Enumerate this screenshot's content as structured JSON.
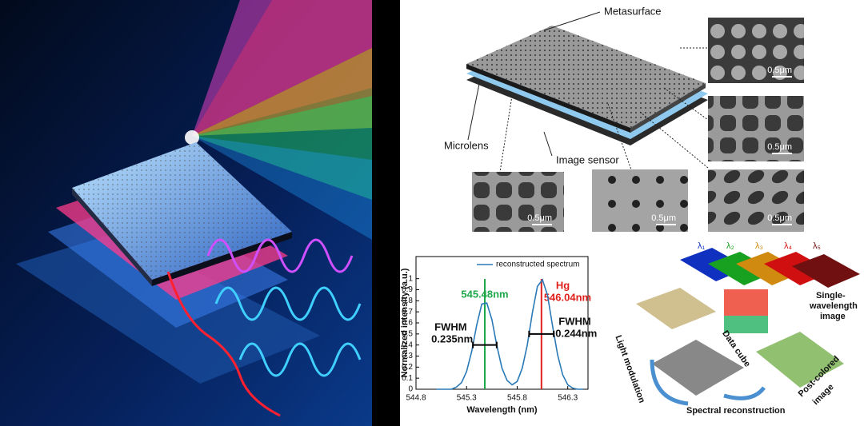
{
  "diagram": {
    "metasurface": "Metasurface",
    "microlens": "Microlens",
    "image_sensor": "Image sensor",
    "scale_bars": [
      "0.5μm",
      "0.5μm",
      "0.5μm",
      "0.5μm",
      "0.5μm"
    ]
  },
  "chart_data": {
    "type": "line",
    "xlabel": "Wavelength (nm)",
    "ylabel": "Normalized intensity (a.u.)",
    "x": [
      545.0,
      545.05,
      545.1,
      545.15,
      545.2,
      545.25,
      545.3,
      545.35,
      545.4,
      545.45,
      545.5,
      545.55,
      545.6,
      545.65,
      545.7,
      545.75,
      545.8,
      545.85,
      545.9,
      545.95,
      546.0,
      546.05,
      546.1,
      546.15,
      546.2,
      546.25,
      546.3,
      546.35,
      546.4,
      546.45
    ],
    "series": [
      {
        "name": "reconstructed spectrum",
        "color": "#2a7ab8",
        "values": [
          0,
          0,
          0,
          0,
          0.02,
          0.06,
          0.16,
          0.34,
          0.58,
          0.77,
          0.78,
          0.63,
          0.39,
          0.19,
          0.08,
          0.04,
          0.07,
          0.19,
          0.4,
          0.69,
          0.93,
          0.99,
          0.85,
          0.57,
          0.31,
          0.13,
          0.04,
          0.01,
          0,
          0
        ]
      }
    ],
    "xlim": [
      544.8,
      546.5
    ],
    "xticks": [
      544.8,
      545.3,
      545.8,
      546.3
    ],
    "ylim": [
      0,
      1.2
    ],
    "yticks": [
      0,
      0.1,
      0.2,
      0.3,
      0.4,
      0.5,
      0.6,
      0.7,
      0.8,
      0.9,
      1
    ],
    "markers": [
      {
        "x": 545.48,
        "label": "545.48nm",
        "color": "#1fa84a"
      },
      {
        "x": 546.04,
        "note": "Hg",
        "label": "546.04nm",
        "color": "#e0201c"
      }
    ],
    "fwhm": [
      {
        "title": "FWHM",
        "label": "0.235nm",
        "center": 545.48,
        "width": 0.235,
        "level": 0.4
      },
      {
        "title": "FWHM",
        "label": "0.244nm",
        "center": 546.04,
        "width": 0.244,
        "level": 0.5
      }
    ]
  },
  "pipeline": {
    "wavelengths": [
      "λ₁",
      "λ₂",
      "λ₃",
      "λ₄",
      "λ₅"
    ],
    "single_wavelength_image": [
      "Single-",
      "wavelength",
      "image"
    ],
    "data_cube": "Data cube",
    "light_modulation": "Light modulation",
    "spectral_reconstruction": "Spectral reconstruction",
    "post_colored_image": [
      "Post-colored",
      "image"
    ]
  }
}
